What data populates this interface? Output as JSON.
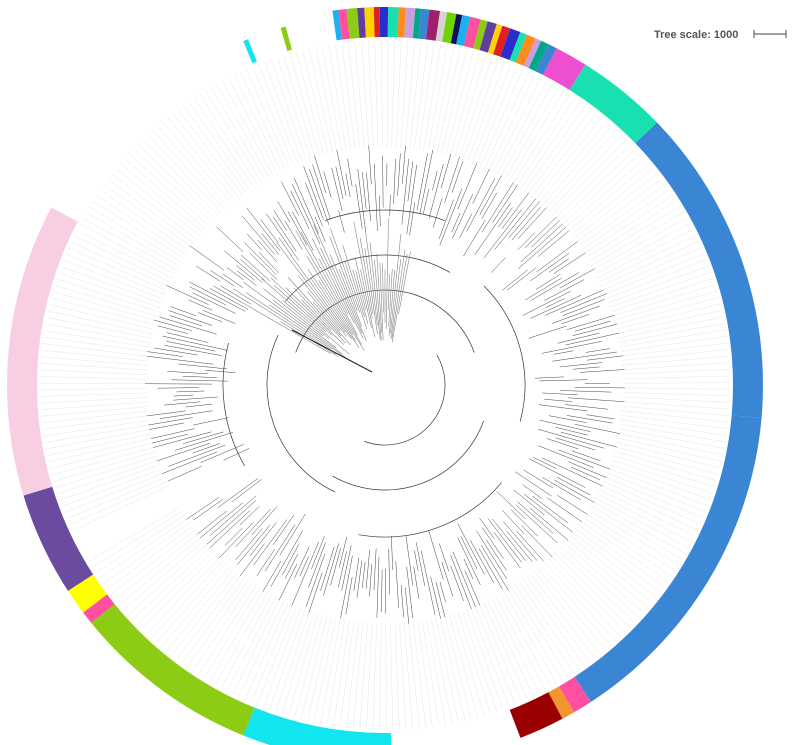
{
  "scale_legend": {
    "label": "Tree scale: 1000"
  },
  "tree": {
    "layout": "circular",
    "clade_colors": {
      "blue": "#3a86d4",
      "teal": "#19e0b0",
      "magenta": "#ee4fd0",
      "cyan": "#11e6ee",
      "green": "#8ccc14",
      "pink_light": "#f8cfe2",
      "purple": "#6a4ba0",
      "yellow": "#ffff00",
      "dark_red": "#9b0000",
      "orange": "#f4962e",
      "hot_pink": "#ff4fa0"
    },
    "multicolor_band_palette": [
      "#1db0ee",
      "#ff4fa0",
      "#8ccc14",
      "#5d3fa0",
      "#ffd200",
      "#e02020",
      "#2b2bd0",
      "#19e0b0",
      "#ff8c1a",
      "#c9a0dc",
      "#00a88a",
      "#3a86d4",
      "#a02070",
      "#d4d4d4",
      "#6dd400",
      "#101060"
    ],
    "isolated_strips": [
      "#11e6ee",
      "#8ccc14"
    ]
  }
}
